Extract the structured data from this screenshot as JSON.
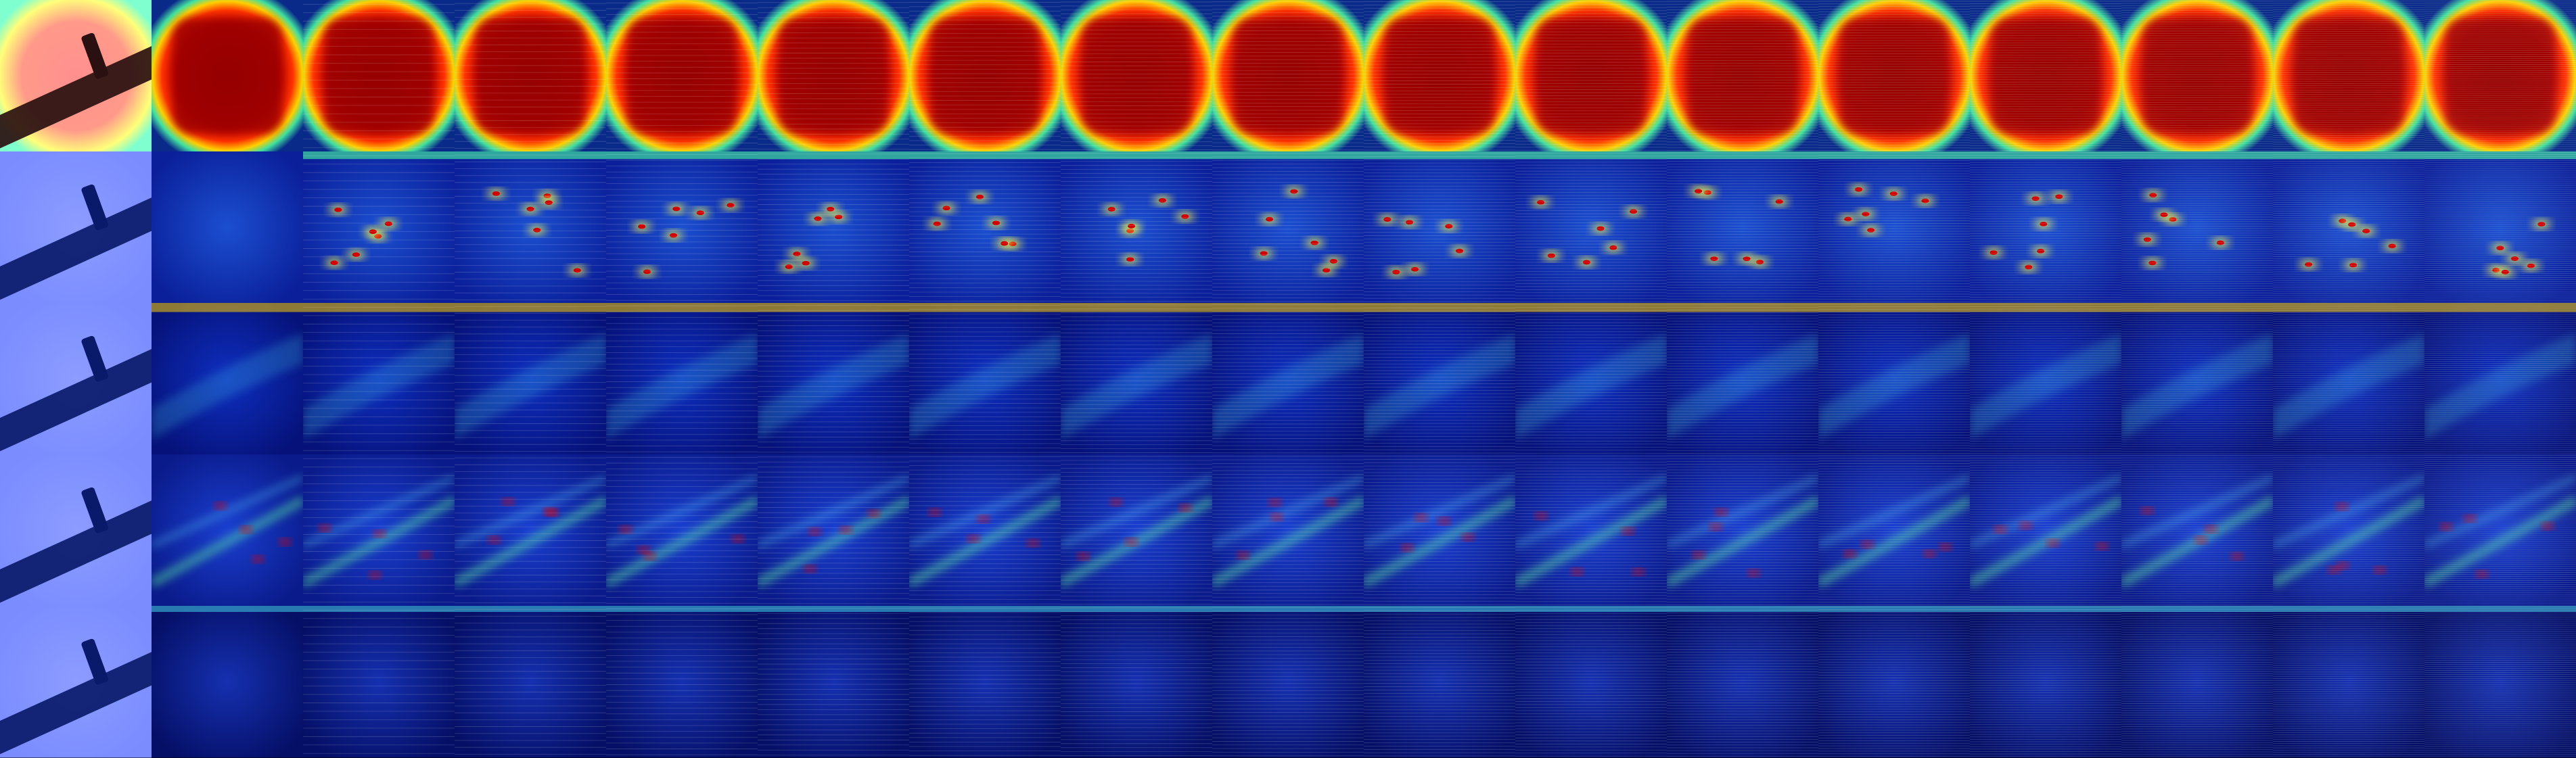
{
  "figure": {
    "rows": 5,
    "columns": 17,
    "colormap": [
      "#00007f",
      "#0000ff",
      "#00bfff",
      "#7fff7f",
      "#ffff00",
      "#ff7f00",
      "#ff0000",
      "#7f0000"
    ],
    "row_kinds": [
      "object-blob",
      "sparse-spots",
      "diffuse-low",
      "diagonal-streaks",
      "faint-banded"
    ]
  }
}
